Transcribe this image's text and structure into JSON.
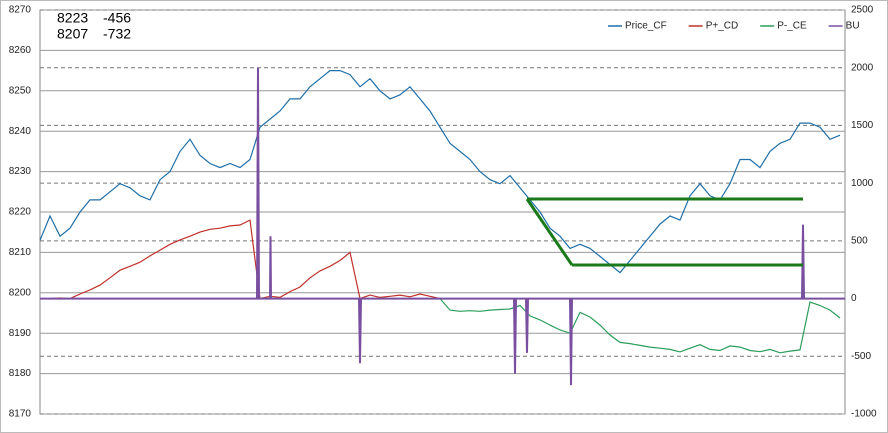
{
  "chart_data": {
    "type": "line",
    "annotations": [
      [
        "8223",
        "-456"
      ],
      [
        "8207",
        "-732"
      ]
    ],
    "x": [
      0,
      1,
      2,
      3,
      4,
      5,
      6,
      7,
      8,
      9,
      10,
      11,
      12,
      13,
      14,
      15,
      16,
      17,
      18,
      19,
      20,
      21,
      22,
      23,
      24,
      25,
      26,
      27,
      28,
      29,
      30,
      31,
      32,
      33,
      34,
      35,
      36,
      37,
      38,
      39,
      40,
      41,
      42,
      43,
      44,
      45,
      46,
      47,
      48,
      49,
      50,
      51,
      52,
      53,
      54,
      55,
      56,
      57,
      58,
      59,
      60,
      61,
      62,
      63,
      64,
      65,
      66,
      67,
      68,
      69,
      70,
      71,
      72,
      73,
      74,
      75,
      76,
      77,
      78,
      79,
      80
    ],
    "xlim": [
      0,
      80.5
    ],
    "ylim": [
      8170,
      8270
    ],
    "yticks": [
      8170,
      8180,
      8190,
      8200,
      8210,
      8220,
      8230,
      8240,
      8250,
      8260,
      8270
    ],
    "y2lim": [
      -1000,
      2500
    ],
    "y2ticks": [
      -1000,
      -500,
      0,
      500,
      1000,
      1500,
      2000,
      2500
    ],
    "grid": true,
    "y2grid": true,
    "legend": "upper right",
    "series": [
      {
        "name": "Price_CF",
        "color": "#1f6fa8",
        "values": [
          8213,
          8219,
          8214,
          8216,
          8220,
          8223,
          8223,
          8225,
          8227,
          8226,
          8224,
          8223,
          8228,
          8230,
          8235,
          8238,
          8234,
          8232,
          8231,
          8232,
          8231,
          8233,
          8241,
          8243,
          8245,
          8248,
          8248,
          8251,
          8253,
          8255,
          8255,
          8254,
          8251,
          8253,
          8250,
          8248,
          8249,
          8251,
          8248,
          8245,
          8241,
          8237,
          8235,
          8233,
          8230,
          8228,
          8227,
          8229,
          8226,
          8223,
          8220,
          8216,
          8214,
          8211,
          8212,
          8211,
          8209,
          8207,
          8205,
          8208,
          8211,
          8214,
          8217,
          8219,
          8218,
          8224,
          8227,
          8224,
          8223,
          8227,
          8233,
          8233,
          8231,
          8235,
          8237,
          8238,
          8242,
          8242,
          8241,
          8238,
          8239
        ]
      },
      {
        "name": "P+_CD",
        "color": "#c0302a",
        "axis": "y2",
        "values": [
          0,
          0,
          5,
          0,
          40,
          75,
          117,
          180,
          246,
          280,
          315,
          370,
          420,
          470,
          508,
          540,
          576,
          600,
          610,
          630,
          637,
          680,
          0,
          20,
          10,
          60,
          100,
          180,
          240,
          280,
          330,
          400,
          0,
          30,
          10,
          20,
          30,
          15,
          40,
          20,
          0,
          null,
          null,
          null,
          null,
          null,
          null,
          null,
          null,
          null,
          null,
          null,
          null,
          null,
          null,
          null,
          null,
          null,
          null,
          null,
          null,
          null,
          null,
          null,
          null,
          null,
          null,
          null,
          null,
          null,
          null,
          null,
          null,
          null,
          null,
          null,
          null,
          null,
          null,
          null,
          null
        ]
      },
      {
        "name": "P-_CE",
        "color": "#2a9d5a",
        "axis": "y2",
        "values": [
          null,
          null,
          null,
          null,
          null,
          null,
          null,
          null,
          null,
          null,
          null,
          null,
          null,
          null,
          null,
          null,
          null,
          null,
          null,
          null,
          null,
          null,
          null,
          null,
          null,
          null,
          null,
          null,
          null,
          null,
          null,
          null,
          null,
          null,
          null,
          null,
          null,
          null,
          null,
          null,
          0,
          -100,
          -110,
          -105,
          -110,
          -100,
          -95,
          -90,
          -60,
          -150,
          -185,
          -230,
          -272,
          -300,
          -120,
          -160,
          -230,
          -316,
          -380,
          -390,
          -406,
          -420,
          -430,
          -440,
          -462,
          -430,
          -400,
          -440,
          -450,
          -410,
          -420,
          -450,
          -460,
          -440,
          -470,
          -455,
          -445,
          -30,
          -60,
          -100,
          -168
        ]
      },
      {
        "name": "BU",
        "color": "#7a4fa0",
        "axis": "y2",
        "x": [
          0,
          21.7,
          21.8,
          21.9,
          23,
          23.05,
          23.1,
          31.9,
          32,
          32.1,
          47.4,
          47.5,
          47.6,
          48.6,
          48.7,
          48.8,
          53,
          53.1,
          53.2,
          76.2,
          76.3,
          76.4,
          80.5
        ],
        "values": [
          0,
          0,
          2000,
          0,
          0,
          540,
          0,
          0,
          -560,
          0,
          0,
          -650,
          0,
          0,
          -470,
          0,
          0,
          -750,
          0,
          0,
          640,
          0,
          0
        ]
      }
    ]
  }
}
